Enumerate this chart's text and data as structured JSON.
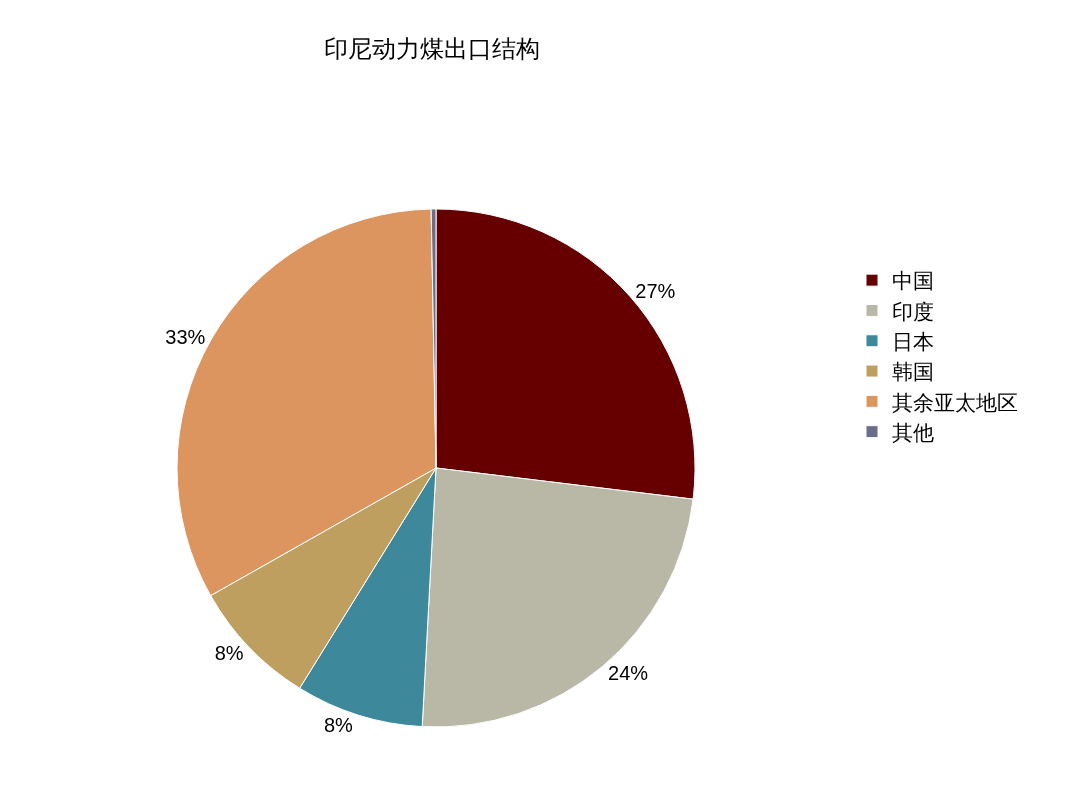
{
  "chart_data": {
    "type": "pie",
    "title": "印尼动力煤出口结构",
    "categories": [
      "中国",
      "印度",
      "日本",
      "韩国",
      "其余亚太地区",
      "其他"
    ],
    "values": [
      27,
      24,
      8,
      8,
      33,
      0.3
    ],
    "value_labels": [
      "27%",
      "24%",
      "8%",
      "8%",
      "33%",
      null
    ],
    "colors": [
      "#660000",
      "#b9b8a6",
      "#3d899b",
      "#bf9f60",
      "#dd955f",
      "#6a6e8a"
    ],
    "legend": "right"
  }
}
